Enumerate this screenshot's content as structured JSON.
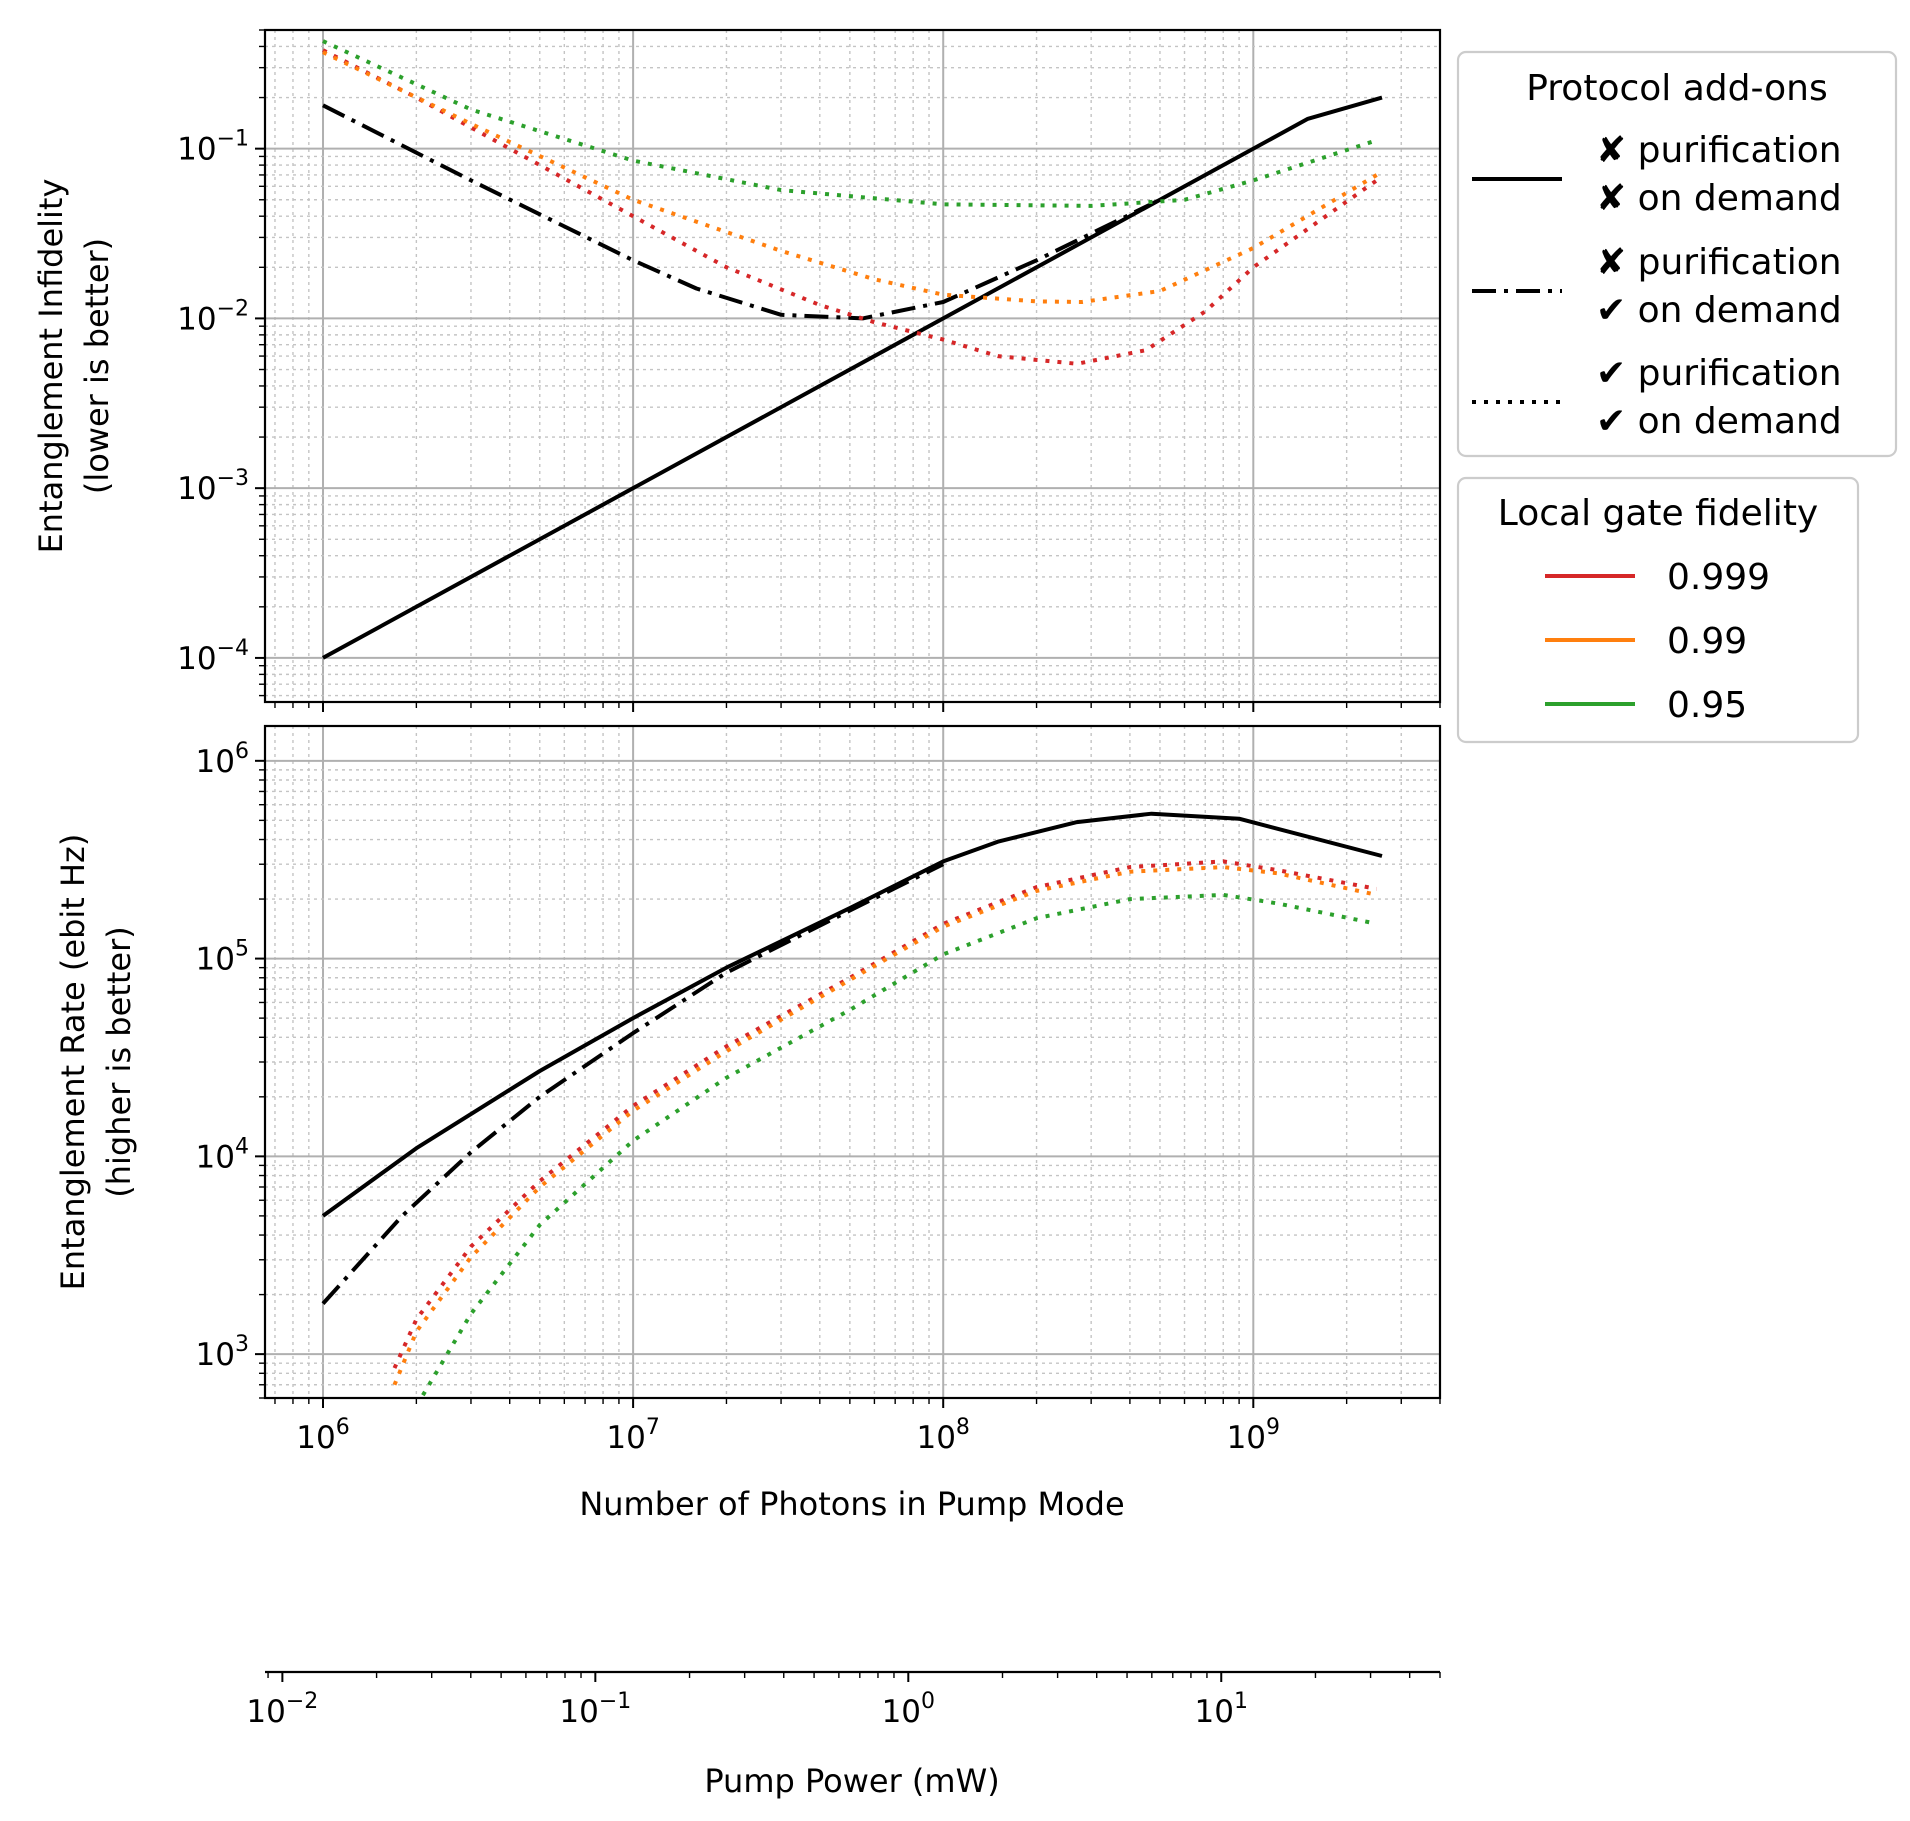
{
  "chart_data": [
    {
      "id": "infidelity",
      "type": "line",
      "ylabel": [
        "Entanglement Infidelity",
        "(lower is better)"
      ],
      "xscale": "log",
      "yscale": "log",
      "xlim": [
        650000,
        4000000000
      ],
      "ylim": [
        5.5e-05,
        0.5
      ],
      "grid": "major and minor",
      "series": [
        {
          "style": "solid",
          "color": "#000000",
          "x": [
            1000000,
            1500000000,
            2600000000
          ],
          "y": [
            0.0001,
            0.15,
            0.2
          ]
        },
        {
          "style": "dashdot",
          "color": "#000000",
          "x": [
            1000000,
            3000000,
            10000000,
            16000000,
            30000000,
            55000000,
            100000000,
            200000000,
            500000000
          ],
          "y": [
            0.18,
            0.065,
            0.022,
            0.015,
            0.0105,
            0.01,
            0.0125,
            0.022,
            0.05
          ]
        },
        {
          "style": "dotted",
          "color": "#d62728",
          "gate_fidelity": "0.999",
          "x": [
            1000000,
            2000000,
            5000000,
            10000000,
            20000000,
            40000000,
            60000000,
            100000000,
            150000000,
            270000000,
            450000000,
            700000000,
            1000000000,
            2500000000
          ],
          "y": [
            0.38,
            0.2,
            0.08,
            0.04,
            0.02,
            0.012,
            0.0095,
            0.0075,
            0.006,
            0.0054,
            0.0065,
            0.011,
            0.02,
            0.065
          ]
        },
        {
          "style": "dotted",
          "color": "#ff7f0e",
          "gate_fidelity": "0.99",
          "x": [
            1000000,
            3000000,
            10000000,
            30000000,
            60000000,
            100000000,
            200000000,
            280000000,
            500000000,
            1000000000,
            2500000000
          ],
          "y": [
            0.37,
            0.14,
            0.05,
            0.025,
            0.017,
            0.0138,
            0.0126,
            0.0125,
            0.0145,
            0.026,
            0.07
          ]
        },
        {
          "style": "dotted",
          "color": "#2ca02c",
          "gate_fidelity": "0.95",
          "x": [
            1000000,
            3000000,
            10000000,
            30000000,
            100000000,
            300000000,
            600000000,
            1000000000,
            2500000000
          ],
          "y": [
            0.43,
            0.17,
            0.085,
            0.057,
            0.047,
            0.046,
            0.05,
            0.065,
            0.112
          ]
        }
      ]
    },
    {
      "id": "rate",
      "type": "line",
      "xlabel": "Number of Photons in Pump Mode",
      "ylabel": [
        "Entanglement Rate (ebit Hz)",
        "(higher is better)"
      ],
      "xscale": "log",
      "yscale": "log",
      "xlim": [
        650000,
        4000000000
      ],
      "ylim": [
        600,
        1500000
      ],
      "grid": "major and minor",
      "series": [
        {
          "style": "solid",
          "color": "#000000",
          "x": [
            1000000,
            2000000,
            5000000,
            10000000,
            20000000,
            50000000,
            100000000,
            150000000,
            270000000,
            470000000,
            900000000,
            2600000000
          ],
          "y": [
            5000,
            11000,
            27000,
            50000,
            90000,
            180000,
            310000,
            390000,
            490000,
            540000,
            510000,
            330000
          ]
        },
        {
          "style": "dashdot",
          "color": "#000000",
          "x": [
            1000000,
            1800000,
            3000000,
            5000000,
            10000000,
            20000000,
            50000000,
            100000000
          ],
          "y": [
            1800,
            5000,
            10500,
            20000,
            42000,
            85000,
            175000,
            300000
          ]
        },
        {
          "style": "dotted",
          "color": "#d62728",
          "gate_fidelity": "0.999",
          "x": [
            1700000,
            2000000,
            3000000,
            5000000,
            10000000,
            20000000,
            50000000,
            100000000,
            200000000,
            400000000,
            800000000,
            1200000000,
            2500000000
          ],
          "y": [
            850,
            1500,
            3500,
            7500,
            18000,
            36000,
            80000,
            150000,
            230000,
            290000,
            310000,
            280000,
            225000
          ]
        },
        {
          "style": "dotted",
          "color": "#ff7f0e",
          "gate_fidelity": "0.99",
          "x": [
            1700000,
            2000000,
            3000000,
            5000000,
            10000000,
            20000000,
            50000000,
            100000000,
            200000000,
            400000000,
            800000000,
            1200000000,
            2500000000
          ],
          "y": [
            700,
            1300,
            3100,
            7000,
            17000,
            34000,
            78000,
            145000,
            220000,
            275000,
            290000,
            270000,
            210000
          ]
        },
        {
          "style": "dotted",
          "color": "#2ca02c",
          "gate_fidelity": "0.95",
          "x": [
            2100000,
            3000000,
            5000000,
            10000000,
            20000000,
            50000000,
            100000000,
            200000000,
            400000000,
            800000000,
            1200000000,
            2500000000
          ],
          "y": [
            620,
            1600,
            4500,
            12000,
            25000,
            55000,
            105000,
            160000,
            200000,
            210000,
            190000,
            150000
          ]
        }
      ]
    },
    {
      "id": "pump-power-axis",
      "type": "axis",
      "xlabel": "Pump Power (mW)",
      "xscale": "log",
      "xlim": [
        0.0088,
        50
      ]
    }
  ],
  "ticks": {
    "photons": [
      {
        "value": 1000000,
        "base": "10",
        "exp": "6"
      },
      {
        "value": 10000000,
        "base": "10",
        "exp": "7"
      },
      {
        "value": 100000000,
        "base": "10",
        "exp": "8"
      },
      {
        "value": 1000000000,
        "base": "10",
        "exp": "9"
      }
    ],
    "infidelity": [
      {
        "value": 0.1,
        "base": "10",
        "exp": "−1"
      },
      {
        "value": 0.01,
        "base": "10",
        "exp": "−2"
      },
      {
        "value": 0.001,
        "base": "10",
        "exp": "−3"
      },
      {
        "value": 0.0001,
        "base": "10",
        "exp": "−4"
      }
    ],
    "rate": [
      {
        "value": 1000000,
        "base": "10",
        "exp": "6"
      },
      {
        "value": 100000,
        "base": "10",
        "exp": "5"
      },
      {
        "value": 10000,
        "base": "10",
        "exp": "4"
      },
      {
        "value": 1000,
        "base": "10",
        "exp": "3"
      }
    ],
    "power": [
      {
        "value": 0.01,
        "base": "10",
        "exp": "−2"
      },
      {
        "value": 0.1,
        "base": "10",
        "exp": "−1"
      },
      {
        "value": 1,
        "base": "10",
        "exp": "0"
      },
      {
        "value": 10,
        "base": "10",
        "exp": "1"
      }
    ]
  },
  "legend_protocol": {
    "title": "Protocol add-ons",
    "placement": "outside top-right",
    "entries": [
      {
        "style": "solid",
        "line1": "✘ purification",
        "line2": "✘ on demand"
      },
      {
        "style": "dashdot",
        "line1": "✘ purification",
        "line2": "✔ on demand"
      },
      {
        "style": "dotted",
        "line1": "✔ purification",
        "line2": "✔ on demand"
      }
    ]
  },
  "legend_fidelity": {
    "title": "Local gate fidelity",
    "placement": "outside right",
    "entries": [
      {
        "label": "0.999",
        "color": "#d62728"
      },
      {
        "label": "0.99",
        "color": "#ff7f0e"
      },
      {
        "label": "0.95",
        "color": "#2ca02c"
      }
    ]
  }
}
